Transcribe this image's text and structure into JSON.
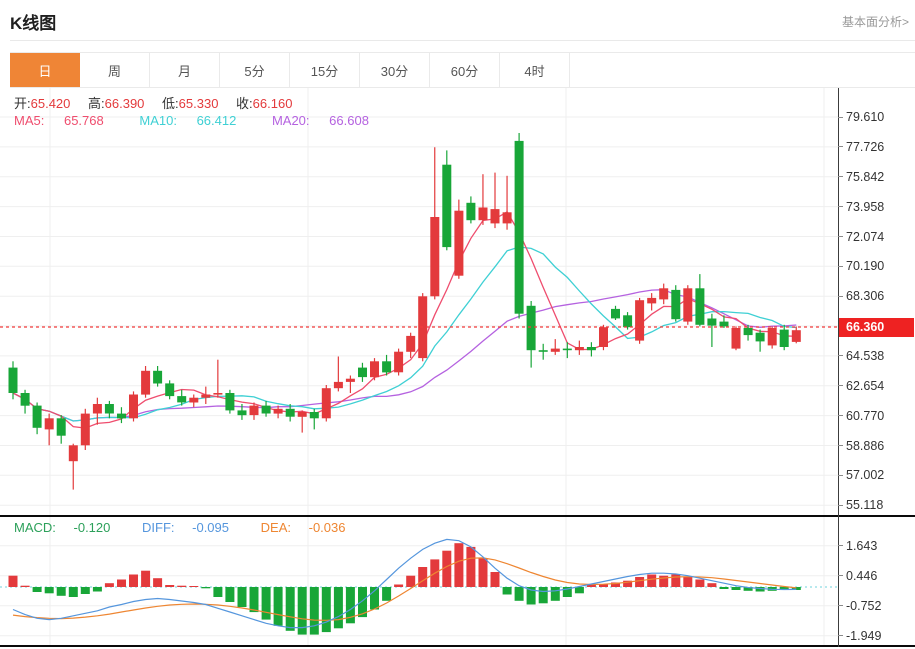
{
  "header": {
    "title": "K线图",
    "link": "基本面分析>"
  },
  "tabs": [
    {
      "id": "day",
      "label": "日",
      "active": true
    },
    {
      "id": "week",
      "label": "周",
      "active": false
    },
    {
      "id": "month",
      "label": "月",
      "active": false
    },
    {
      "id": "5min",
      "label": "5分",
      "active": false
    },
    {
      "id": "15min",
      "label": "15分",
      "active": false
    },
    {
      "id": "30min",
      "label": "30分",
      "active": false
    },
    {
      "id": "60min",
      "label": "60分",
      "active": false
    },
    {
      "id": "4hour",
      "label": "4时",
      "active": false
    }
  ],
  "info": {
    "open_label": "开:",
    "open": "65.420",
    "high_label": "高:",
    "high": "66.390",
    "low_label": "低:",
    "low": "65.330",
    "close_label": "收:",
    "close": "66.160"
  },
  "ma": {
    "ma5_label": "MA5:",
    "ma5": "65.768",
    "ma10_label": "MA10:",
    "ma10": "66.412",
    "ma20_label": "MA20:",
    "ma20": "66.608"
  },
  "macd_info": {
    "macd_label": "MACD:",
    "macd": "-0.120",
    "diff_label": "DIFF:",
    "diff": "-0.095",
    "dea_label": "DEA:",
    "dea": "-0.036"
  },
  "price_marker": {
    "value": "66.360"
  },
  "colors": {
    "accent_orange": "#ef8536",
    "up_red": "#e33a3c",
    "down_green": "#18a638",
    "ma5": "#ef4d6e",
    "ma10": "#3fd0d4",
    "ma20": "#b562e0",
    "macd_text_green": "#2ca05a",
    "diff_blue": "#5596dd",
    "dea_orange": "#ee8632",
    "price_marker_bg": "#ee2222",
    "price_line_red": "#f23b3b",
    "zero_line_cyan": "#6fd3de",
    "grid": "#efefef"
  },
  "chart_data": {
    "type": "candlestick",
    "panes": [
      {
        "name": "price",
        "yticks": [
          "79.610",
          "77.726",
          "75.842",
          "73.958",
          "72.074",
          "70.190",
          "68.306",
          "64.538",
          "62.654",
          "60.770",
          "58.886",
          "57.002",
          "55.118"
        ],
        "hidden_grid_level": 66.422,
        "ylim": [
          54.4,
          81.4
        ],
        "current_price": 66.36,
        "ma_periods": [
          5,
          10,
          20
        ],
        "grid": true,
        "candles": [
          [
            63.8,
            64.2,
            61.8,
            62.2
          ],
          [
            62.2,
            62.4,
            60.9,
            61.4
          ],
          [
            61.4,
            61.6,
            59.6,
            60.0
          ],
          [
            59.9,
            60.9,
            58.9,
            60.6
          ],
          [
            60.6,
            60.8,
            59.0,
            59.5
          ],
          [
            57.9,
            59.0,
            56.1,
            58.9
          ],
          [
            58.9,
            61.2,
            58.6,
            60.9
          ],
          [
            60.9,
            61.9,
            60.2,
            61.5
          ],
          [
            61.5,
            61.7,
            60.6,
            60.9
          ],
          [
            60.9,
            61.3,
            60.3,
            60.6
          ],
          [
            60.6,
            62.3,
            60.4,
            62.1
          ],
          [
            62.1,
            63.9,
            61.9,
            63.6
          ],
          [
            63.6,
            63.9,
            62.6,
            62.8
          ],
          [
            62.8,
            63.0,
            61.8,
            62.0
          ],
          [
            62.0,
            62.4,
            61.4,
            61.6
          ],
          [
            61.6,
            62.1,
            61.3,
            61.9
          ],
          [
            61.9,
            62.6,
            61.5,
            62.1
          ],
          [
            62.1,
            64.3,
            61.9,
            62.2
          ],
          [
            62.2,
            62.4,
            60.9,
            61.1
          ],
          [
            61.1,
            61.5,
            60.5,
            60.8
          ],
          [
            60.8,
            61.6,
            60.5,
            61.4
          ],
          [
            61.4,
            61.7,
            60.7,
            60.9
          ],
          [
            60.9,
            61.4,
            60.6,
            61.2
          ],
          [
            61.2,
            61.5,
            60.4,
            60.7
          ],
          [
            60.7,
            61.1,
            59.7,
            61.0
          ],
          [
            61.0,
            61.2,
            59.9,
            60.6
          ],
          [
            60.6,
            62.7,
            60.4,
            62.5
          ],
          [
            62.5,
            64.5,
            62.3,
            62.9
          ],
          [
            62.9,
            63.3,
            62.2,
            63.1
          ],
          [
            63.8,
            64.1,
            62.9,
            63.2
          ],
          [
            63.2,
            64.4,
            63.0,
            64.2
          ],
          [
            64.2,
            64.6,
            63.3,
            63.5
          ],
          [
            63.5,
            65.0,
            63.3,
            64.8
          ],
          [
            64.8,
            66.0,
            64.4,
            65.8
          ],
          [
            64.4,
            68.5,
            64.2,
            68.3
          ],
          [
            68.3,
            77.7,
            68.1,
            73.3
          ],
          [
            76.6,
            77.5,
            71.2,
            71.4
          ],
          [
            69.6,
            74.4,
            69.4,
            73.7
          ],
          [
            74.2,
            74.6,
            72.9,
            73.1
          ],
          [
            73.1,
            76.0,
            72.8,
            73.9
          ],
          [
            72.9,
            76.1,
            72.6,
            73.8
          ],
          [
            72.9,
            75.9,
            72.5,
            73.6
          ],
          [
            78.1,
            78.6,
            66.9,
            67.2
          ],
          [
            67.7,
            68.0,
            63.8,
            64.9
          ],
          [
            64.9,
            65.3,
            64.3,
            64.8
          ],
          [
            64.8,
            65.6,
            64.6,
            65.0
          ],
          [
            65.0,
            65.4,
            64.4,
            64.9
          ],
          [
            64.9,
            65.5,
            64.6,
            65.1
          ],
          [
            65.1,
            65.4,
            64.5,
            64.9
          ],
          [
            65.1,
            66.5,
            64.9,
            66.35
          ],
          [
            67.5,
            67.7,
            66.8,
            66.9
          ],
          [
            67.1,
            67.3,
            66.2,
            66.35
          ],
          [
            65.5,
            68.2,
            65.3,
            68.05
          ],
          [
            67.85,
            68.5,
            67.4,
            68.2
          ],
          [
            68.1,
            69.1,
            67.8,
            68.8
          ],
          [
            68.7,
            69.0,
            66.7,
            66.85
          ],
          [
            66.7,
            69.0,
            66.5,
            68.8
          ],
          [
            68.8,
            69.7,
            66.4,
            66.5
          ],
          [
            66.9,
            67.2,
            65.1,
            66.45
          ],
          [
            66.7,
            67.1,
            66.3,
            66.4
          ],
          [
            65.0,
            66.4,
            64.9,
            66.3
          ],
          [
            66.3,
            66.5,
            65.5,
            65.85
          ],
          [
            66.0,
            66.2,
            64.8,
            65.45
          ],
          [
            65.2,
            66.4,
            65.0,
            66.3
          ],
          [
            66.2,
            66.5,
            64.9,
            65.1
          ],
          [
            65.42,
            66.39,
            65.33,
            66.16
          ]
        ]
      },
      {
        "name": "macd",
        "yticks": [
          "1.643",
          "0.446",
          "-0.752",
          "-1.949"
        ],
        "ylim": [
          -2.31,
          2.27
        ],
        "grid": true,
        "histogram": [
          0.45,
          0.05,
          -0.2,
          -0.25,
          -0.35,
          -0.4,
          -0.28,
          -0.18,
          0.15,
          0.3,
          0.5,
          0.65,
          0.35,
          0.08,
          0.05,
          0.04,
          -0.05,
          -0.4,
          -0.6,
          -0.8,
          -1.0,
          -1.3,
          -1.55,
          -1.75,
          -1.9,
          -1.9,
          -1.8,
          -1.65,
          -1.45,
          -1.2,
          -0.9,
          -0.55,
          0.1,
          0.45,
          0.8,
          1.1,
          1.45,
          1.75,
          1.6,
          1.15,
          0.6,
          -0.3,
          -0.55,
          -0.7,
          -0.65,
          -0.55,
          -0.4,
          -0.25,
          0.08,
          0.12,
          0.18,
          0.25,
          0.4,
          0.5,
          0.45,
          0.5,
          0.4,
          0.3,
          0.15,
          -0.08,
          -0.12,
          -0.15,
          -0.18,
          -0.15,
          -0.12,
          -0.12
        ],
        "diff": [
          -0.9,
          -1.1,
          -1.25,
          -1.3,
          -1.25,
          -1.15,
          -1.05,
          -0.95,
          -0.8,
          -0.7,
          -0.58,
          -0.5,
          -0.46,
          -0.5,
          -0.56,
          -0.62,
          -0.7,
          -0.85,
          -1.0,
          -1.15,
          -1.3,
          -1.45,
          -1.55,
          -1.62,
          -1.62,
          -1.55,
          -1.4,
          -1.18,
          -0.9,
          -0.55,
          -0.15,
          0.3,
          0.75,
          1.15,
          1.5,
          1.75,
          1.9,
          1.85,
          1.6,
          1.2,
          0.75,
          0.35,
          0.05,
          -0.12,
          -0.18,
          -0.15,
          -0.08,
          0.02,
          0.12,
          0.22,
          0.32,
          0.42,
          0.5,
          0.55,
          0.55,
          0.52,
          0.45,
          0.35,
          0.25,
          0.15,
          0.05,
          -0.02,
          -0.06,
          -0.09,
          -0.1,
          -0.095
        ],
        "dea": [
          -1.12,
          -1.18,
          -1.22,
          -1.25,
          -1.26,
          -1.24,
          -1.2,
          -1.15,
          -1.08,
          -1.0,
          -0.92,
          -0.84,
          -0.77,
          -0.72,
          -0.69,
          -0.68,
          -0.69,
          -0.72,
          -0.77,
          -0.84,
          -0.92,
          -1.01,
          -1.1,
          -1.19,
          -1.27,
          -1.32,
          -1.33,
          -1.3,
          -1.21,
          -1.07,
          -0.88,
          -0.64,
          -0.36,
          -0.06,
          0.25,
          0.55,
          0.82,
          1.03,
          1.15,
          1.16,
          1.08,
          0.93,
          0.76,
          0.58,
          0.42,
          0.28,
          0.18,
          0.12,
          0.1,
          0.11,
          0.14,
          0.19,
          0.25,
          0.31,
          0.36,
          0.4,
          0.41,
          0.4,
          0.37,
          0.32,
          0.26,
          0.2,
          0.14,
          0.08,
          0.02,
          -0.036
        ]
      }
    ]
  }
}
